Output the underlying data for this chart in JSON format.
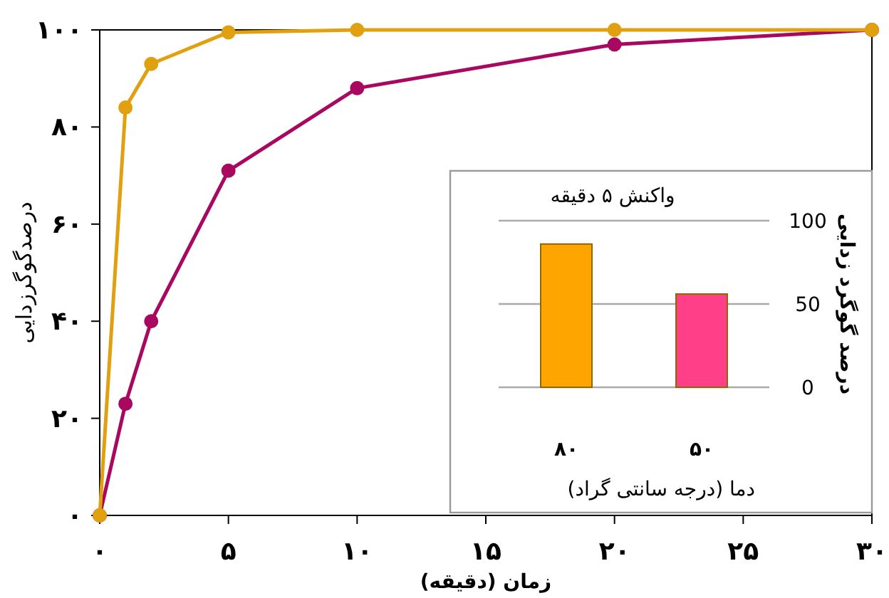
{
  "chart_data": [
    {
      "type": "line",
      "xlabel": "زمان (دقیقه)",
      "ylabel": "درصدگوگرزدایی",
      "x": [
        0,
        1,
        2,
        5,
        10,
        20,
        30
      ],
      "marker": "circle",
      "series": [
        {
          "color": "#a8085f",
          "values": [
            0,
            23,
            40,
            71,
            88,
            97,
            100
          ]
        },
        {
          "color": "#e0a010",
          "values": [
            0,
            84,
            93,
            99.5,
            100,
            100,
            100
          ]
        }
      ],
      "xlim": [
        0,
        30
      ],
      "ylim": [
        0,
        100
      ],
      "xticks": [
        {
          "value": 0,
          "label": "۰"
        },
        {
          "value": 5,
          "label": "۵"
        },
        {
          "value": 10,
          "label": "۱۰"
        },
        {
          "value": 15,
          "label": "۱۵"
        },
        {
          "value": 20,
          "label": "۲۰"
        },
        {
          "value": 25,
          "label": "۲۵"
        },
        {
          "value": 30,
          "label": "۳۰"
        }
      ],
      "yticks": [
        {
          "value": 0,
          "label": "۰"
        },
        {
          "value": 20,
          "label": "۲۰"
        },
        {
          "value": 40,
          "label": "۴۰"
        },
        {
          "value": 60,
          "label": "۶۰"
        },
        {
          "value": 80,
          "label": "۸۰"
        },
        {
          "value": 100,
          "label": "۱۰۰"
        }
      ]
    },
    {
      "type": "bar",
      "title": "واکنش ۵ دقیقه",
      "xlabel": "دما (درجه سانتی گراد)",
      "ylabel": "درصد گوگرد زدایی",
      "categories": [
        "۸۰",
        "۵۰"
      ],
      "values": [
        86,
        56
      ],
      "colors": [
        "#ffa500",
        "#ff4088"
      ],
      "ylim": [
        0,
        100
      ],
      "yticks": [
        0,
        50,
        100
      ],
      "grid": "y"
    }
  ]
}
